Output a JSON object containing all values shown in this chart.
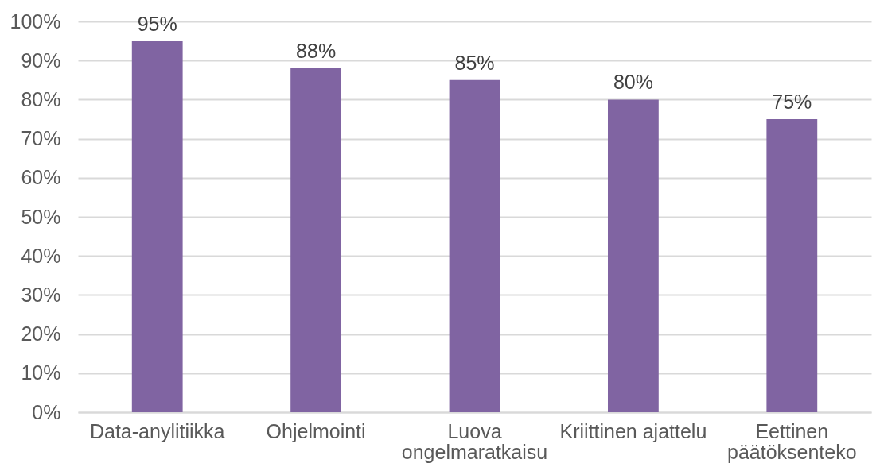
{
  "chart_data": {
    "type": "bar",
    "categories": [
      "Data-anylitiikka",
      "Ohjelmointi",
      "Luova ongelmaratkaisu",
      "Kriittinen ajattelu",
      "Eettinen päätöksenteko"
    ],
    "values": [
      95,
      88,
      85,
      80,
      75
    ],
    "value_labels": [
      "95%",
      "88%",
      "85%",
      "80%",
      "75%"
    ],
    "color": "#8064a2",
    "ylim": [
      0,
      100
    ],
    "yticks": [
      {
        "value": 0,
        "label": "0%"
      },
      {
        "value": 10,
        "label": "10%"
      },
      {
        "value": 20,
        "label": "20%"
      },
      {
        "value": 30,
        "label": "30%"
      },
      {
        "value": 40,
        "label": "40%"
      },
      {
        "value": 50,
        "label": "50%"
      },
      {
        "value": 60,
        "label": "60%"
      },
      {
        "value": 70,
        "label": "70%"
      },
      {
        "value": 80,
        "label": "80%"
      },
      {
        "value": 90,
        "label": "90%"
      },
      {
        "value": 100,
        "label": "100%"
      }
    ],
    "grid": "y"
  }
}
